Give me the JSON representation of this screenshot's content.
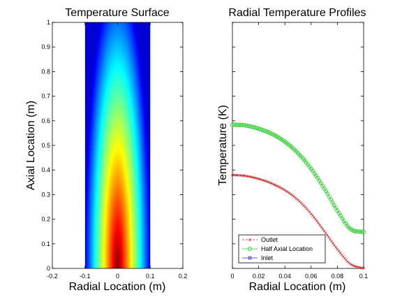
{
  "chart_data": [
    {
      "type": "heatmap",
      "title": "Temperature Surface",
      "xlabel": "Radial Location (m)",
      "ylabel": "Axial Location (m)",
      "xlim": [
        -0.2,
        0.2
      ],
      "ylim": [
        0,
        1
      ],
      "xticks": [
        "-0.2",
        "-0.1",
        "0",
        "0.1",
        "0.2"
      ],
      "yticks": [
        "0",
        "0.1",
        "0.2",
        "0.3",
        "0.4",
        "0.5",
        "0.6",
        "0.7",
        "0.8",
        "0.9",
        "1"
      ],
      "field_extent_x": [
        -0.1,
        0.1
      ],
      "colormap": "jet",
      "field_description": "hot (red) at axis near z=0, cooling (blue) toward wall r=±0.1 and toward z=1"
    },
    {
      "type": "line",
      "title": "Radial Temperature Profiles",
      "xlabel": "Radial Location (m)",
      "ylabel": "Temperature (K)",
      "xlim": [
        0,
        0.1
      ],
      "xticks": [
        "0",
        "0.02",
        "0.04",
        "0.06",
        "0.08",
        "0.1"
      ],
      "legend_position": "bottom-left",
      "series": [
        {
          "name": "Outlet",
          "color": "#cc2222",
          "marker": "x",
          "x": [
            0,
            0.01,
            0.02,
            0.03,
            0.04,
            0.05,
            0.06,
            0.07,
            0.08,
            0.09,
            0.1
          ],
          "y": [
            0.38,
            0.376,
            0.364,
            0.345,
            0.318,
            0.278,
            0.222,
            0.152,
            0.078,
            0.018,
            0.0
          ]
        },
        {
          "name": "Half Axial Location",
          "color": "#22cc22",
          "marker": "o",
          "x": [
            0,
            0.01,
            0.02,
            0.03,
            0.04,
            0.05,
            0.06,
            0.07,
            0.08,
            0.09,
            0.1
          ],
          "y": [
            0.585,
            0.581,
            0.568,
            0.547,
            0.515,
            0.468,
            0.405,
            0.325,
            0.235,
            0.16,
            0.148
          ]
        },
        {
          "name": "Inlet",
          "color": "#2222cc",
          "marker": "square",
          "x": [],
          "y": []
        }
      ]
    }
  ]
}
